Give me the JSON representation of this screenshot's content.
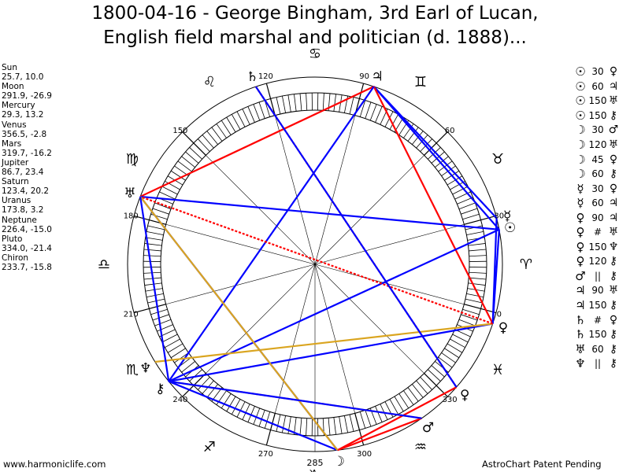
{
  "title": {
    "line1": "1800-04-16 - George Bingham, 3rd Earl of Lucan,",
    "line2": "English field marshal and politician (d. 1888)..."
  },
  "planets": [
    {
      "name": "Sun",
      "coords": "25.7, 10.0",
      "glyph": "☉",
      "lon": 25.7
    },
    {
      "name": "Moon",
      "coords": "291.9, -26.9",
      "glyph": "☽",
      "lon": 291.9
    },
    {
      "name": "Mercury",
      "coords": "29.3, 13.2",
      "glyph": "☿",
      "lon": 29.3
    },
    {
      "name": "Venus",
      "coords": "356.5, -2.8",
      "glyph": "♀",
      "lon": 356.5
    },
    {
      "name": "Mars",
      "coords": "319.7, -16.2",
      "glyph": "♂",
      "lon": 319.7
    },
    {
      "name": "Jupiter",
      "coords": "86.7, 23.4",
      "glyph": "♃",
      "lon": 86.7
    },
    {
      "name": "Saturn",
      "coords": "123.4, 20.2",
      "glyph": "♄",
      "lon": 123.4
    },
    {
      "name": "Uranus",
      "coords": "173.8, 3.2",
      "glyph": "♅",
      "lon": 173.8
    },
    {
      "name": "Neptune",
      "coords": "226.4, -15.0",
      "glyph": "♆",
      "lon": 226.4
    },
    {
      "name": "Pluto",
      "coords": "334.0, -21.4",
      "glyph": "♀",
      "lon": 334.0
    },
    {
      "name": "Chiron",
      "coords": "233.7, -15.8",
      "glyph": "⚷",
      "lon": 233.7
    }
  ],
  "aspects": [
    {
      "p1": "☉",
      "aspect": "30",
      "p2": "♀"
    },
    {
      "p1": "☉",
      "aspect": "60",
      "p2": "♃"
    },
    {
      "p1": "☉",
      "aspect": "150",
      "p2": "♅"
    },
    {
      "p1": "☉",
      "aspect": "150",
      "p2": "⚷"
    },
    {
      "p1": "☽",
      "aspect": "30",
      "p2": "♂"
    },
    {
      "p1": "☽",
      "aspect": "120",
      "p2": "♅"
    },
    {
      "p1": "☽",
      "aspect": "45",
      "p2": "♀"
    },
    {
      "p1": "☽",
      "aspect": "60",
      "p2": "⚷"
    },
    {
      "p1": "☿",
      "aspect": "30",
      "p2": "♀"
    },
    {
      "p1": "☿",
      "aspect": "60",
      "p2": "♃"
    },
    {
      "p1": "♀",
      "aspect": "90",
      "p2": "♃"
    },
    {
      "p1": "♀",
      "aspect": "#",
      "p2": "♅"
    },
    {
      "p1": "♀",
      "aspect": "150",
      "p2": "♆"
    },
    {
      "p1": "♀",
      "aspect": "120",
      "p2": "⚷"
    },
    {
      "p1": "♂",
      "aspect": "||",
      "p2": "⚷"
    },
    {
      "p1": "♃",
      "aspect": "90",
      "p2": "♅"
    },
    {
      "p1": "♃",
      "aspect": "150",
      "p2": "⚷"
    },
    {
      "p1": "♄",
      "aspect": "#",
      "p2": "♀"
    },
    {
      "p1": "♄",
      "aspect": "150",
      "p2": "⚷"
    },
    {
      "p1": "♅",
      "aspect": "60",
      "p2": "⚷"
    },
    {
      "p1": "♆",
      "aspect": "||",
      "p2": "⚷"
    }
  ],
  "degree_labels": [
    {
      "text": "0",
      "deg": 0
    },
    {
      "text": "30",
      "deg": 30
    },
    {
      "text": "60",
      "deg": 60
    },
    {
      "text": "90",
      "deg": 90
    },
    {
      "text": "120",
      "deg": 120
    },
    {
      "text": "150",
      "deg": 150
    },
    {
      "text": "180",
      "deg": 180
    },
    {
      "text": "210",
      "deg": 210
    },
    {
      "text": "240",
      "deg": 240
    },
    {
      "text": "270",
      "deg": 270
    },
    {
      "text": "300",
      "deg": 300
    },
    {
      "text": "330",
      "deg": 330
    }
  ],
  "ascendant_label": "285",
  "signs": [
    {
      "glyph": "♈",
      "deg": 15
    },
    {
      "glyph": "♉",
      "deg": 45
    },
    {
      "glyph": "♊",
      "deg": 75
    },
    {
      "glyph": "♋",
      "deg": 105
    },
    {
      "glyph": "♌",
      "deg": 135
    },
    {
      "glyph": "♍",
      "deg": 165
    },
    {
      "glyph": "♎",
      "deg": 195
    },
    {
      "glyph": "♏",
      "deg": 225
    },
    {
      "glyph": "♐",
      "deg": 255
    },
    {
      "glyph": "♑",
      "deg": 285
    },
    {
      "glyph": "♒",
      "deg": 315
    },
    {
      "glyph": "♓",
      "deg": 345
    }
  ],
  "lines": [
    {
      "a": "Jupiter",
      "b": "Sun",
      "color": "#0000ff",
      "dashed": false
    },
    {
      "a": "Jupiter",
      "b": "Mercury",
      "color": "#0000ff",
      "dashed": false
    },
    {
      "a": "Jupiter",
      "b": "Venus",
      "color": "#ff0000",
      "dashed": false
    },
    {
      "a": "Jupiter",
      "b": "Uranus",
      "color": "#ff0000",
      "dashed": false
    },
    {
      "a": "Jupiter",
      "b": "Chiron",
      "color": "#0000ff",
      "dashed": false
    },
    {
      "a": "Sun",
      "b": "Venus",
      "color": "#0000ff",
      "dashed": false
    },
    {
      "a": "Mercury",
      "b": "Venus",
      "color": "#0000ff",
      "dashed": false
    },
    {
      "a": "Sun",
      "b": "Uranus",
      "color": "#0000ff",
      "dashed": false
    },
    {
      "a": "Sun",
      "b": "Chiron",
      "color": "#0000ff",
      "dashed": false
    },
    {
      "a": "Venus",
      "b": "Chiron",
      "color": "#0000ff",
      "dashed": false
    },
    {
      "a": "Venus",
      "b": "Neptune",
      "color": "#daa520",
      "dashed": false
    },
    {
      "a": "Venus",
      "b": "Uranus",
      "color": "#ff0000",
      "dashed": true
    },
    {
      "a": "Moon",
      "b": "Uranus",
      "color": "#0000ff",
      "dashed": false
    },
    {
      "a": "Moon",
      "b": "Mars",
      "color": "#ff0000",
      "dashed": false
    },
    {
      "a": "Moon",
      "b": "Pluto",
      "color": "#ff0000",
      "dashed": false
    },
    {
      "a": "Moon",
      "b": "Chiron",
      "color": "#0000ff",
      "dashed": false
    },
    {
      "a": "Moon",
      "b": "Uranus",
      "color": "#daa520",
      "dashed": false
    },
    {
      "a": "Saturn",
      "b": "Pluto",
      "color": "#ff0000",
      "dashed": true
    },
    {
      "a": "Saturn",
      "b": "Pluto",
      "color": "#0000ff",
      "dashed": false
    },
    {
      "a": "Uranus",
      "b": "Chiron",
      "color": "#0000ff",
      "dashed": false
    },
    {
      "a": "Mars",
      "b": "Chiron",
      "color": "#daa520",
      "dashed": true
    },
    {
      "a": "Mars",
      "b": "Chiron",
      "color": "#0000ff",
      "dashed": false
    }
  ],
  "footer": {
    "left": "www.harmoniclife.com",
    "right": "AstroChart Patent Pending"
  }
}
